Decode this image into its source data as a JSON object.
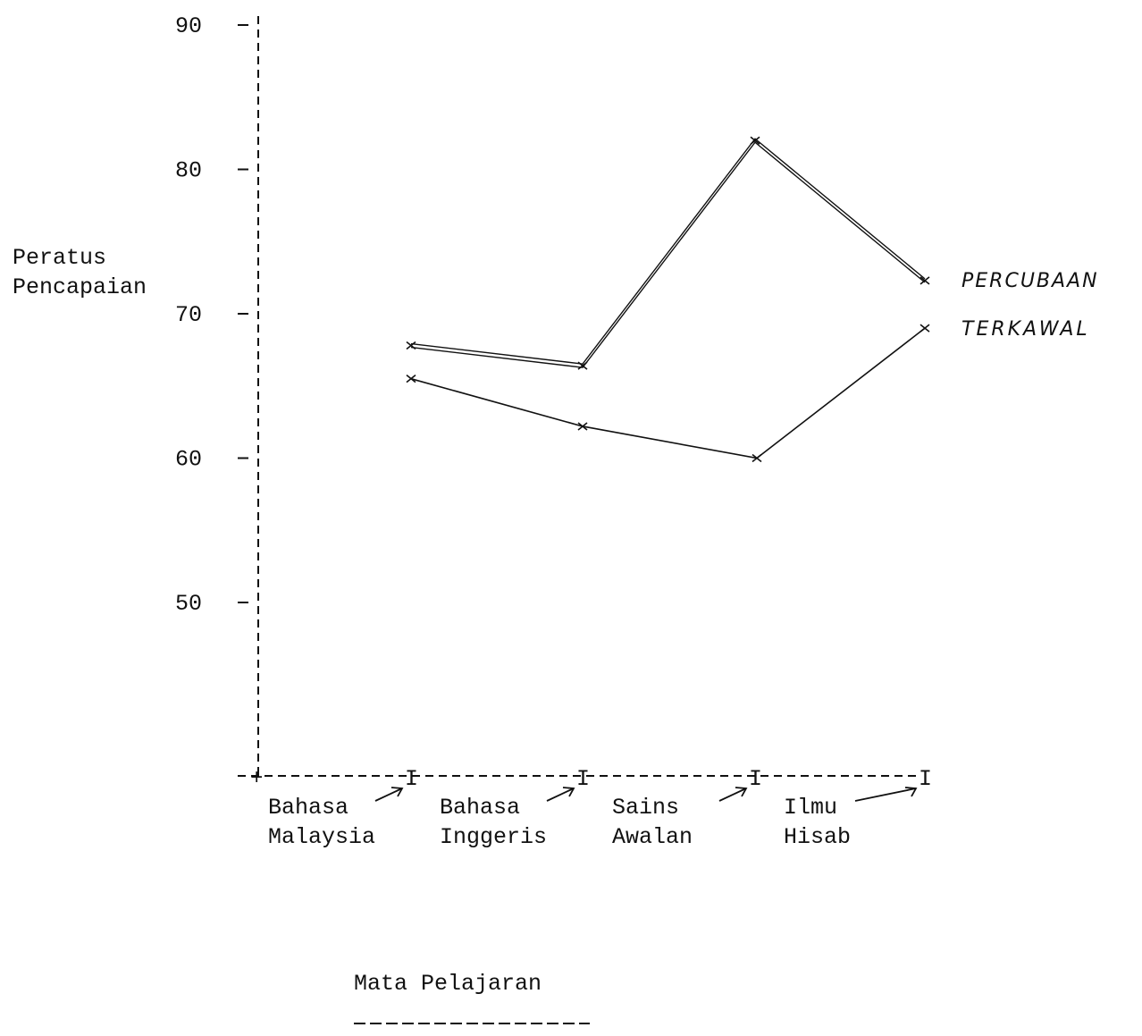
{
  "chart_data": {
    "type": "line",
    "ylabel_lines": [
      "Peratus",
      "Pencapaian"
    ],
    "xlabel": "Mata Pelajaran",
    "categories": [
      [
        "Bahasa",
        "Malaysia"
      ],
      [
        "Bahasa",
        "Inggeris"
      ],
      [
        "Sains",
        "Awalan"
      ],
      [
        "Ilmu",
        "Hisab"
      ]
    ],
    "yticks": [
      "90",
      "80",
      "70",
      "60",
      "50"
    ],
    "ylim": [
      40,
      90
    ],
    "x_tick_marker": "I",
    "series": [
      {
        "name": "Percubaan",
        "label": "PERCUBAAN",
        "style": "double",
        "values": [
          67.8,
          66.4,
          82.0,
          72.3
        ]
      },
      {
        "name": "Terkawal",
        "label": "TERKAWAL",
        "style": "single",
        "values": [
          65.5,
          62.2,
          60.0,
          69.0
        ]
      }
    ],
    "grid": false,
    "legend": "right"
  }
}
